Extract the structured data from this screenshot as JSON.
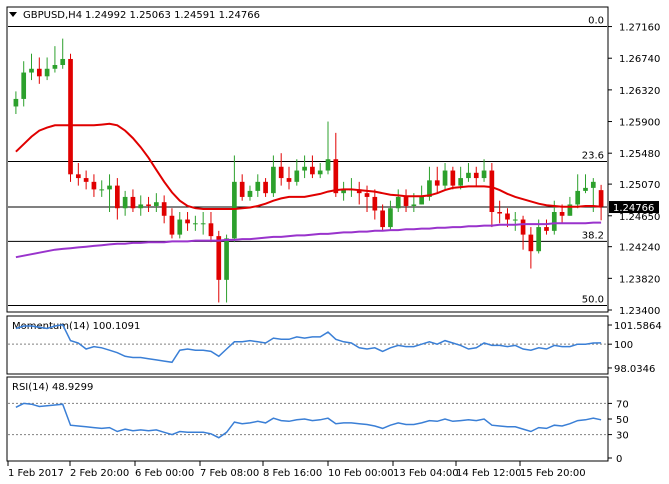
{
  "header": {
    "symbol": "GBPUSD,H4",
    "ohlc": "1.24992 1.25063 1.24591 1.24766"
  },
  "colors": {
    "bull": "#2ca02c",
    "bear": "#e00000",
    "ma_fast": "#e00000",
    "ma_slow": "#9933cc",
    "indicator": "#3a7fd6",
    "grid": "#000000",
    "dotted": "#808080",
    "price_tag_bg": "#000000",
    "price_tag_fg": "#ffffff"
  },
  "chart_data": [
    {
      "type": "candlestick",
      "name": "price",
      "ylim": [
        1.234,
        1.273
      ],
      "y_ticks": [
        "1.27160",
        "1.26740",
        "1.26320",
        "1.25900",
        "1.25480",
        "1.25070",
        "1.24650",
        "1.24240",
        "1.23820",
        "1.23400"
      ],
      "x_labels": [
        "1 Feb 2017",
        "2 Feb 20:00",
        "6 Feb 00:00",
        "7 Feb 08:00",
        "8 Feb 16:00",
        "10 Feb 00:00",
        "13 Feb 04:00",
        "14 Feb 12:00",
        "15 Feb 20:00"
      ],
      "last_price": "1.24766",
      "fib_levels": [
        {
          "label": "0.0",
          "value": 1.2716
        },
        {
          "label": "23.6",
          "value": 1.2537
        },
        {
          "label": "38.2",
          "value": 1.2431
        },
        {
          "label": "50.0",
          "value": 1.2346
        }
      ],
      "closes": [
        1.262,
        1.2655,
        1.266,
        1.265,
        1.266,
        1.2665,
        1.2673,
        1.252,
        1.2515,
        1.251,
        1.25,
        1.25,
        1.2505,
        1.2475,
        1.249,
        1.2475,
        1.248,
        1.2478,
        1.2483,
        1.2465,
        1.244,
        1.246,
        1.2455,
        1.2455,
        1.2455,
        1.2438,
        1.238,
        1.2435,
        1.251,
        1.249,
        1.2498,
        1.251,
        1.2495,
        1.253,
        1.2515,
        1.251,
        1.2525,
        1.253,
        1.252,
        1.2525,
        1.254,
        1.2495,
        1.25,
        1.25,
        1.2495,
        1.249,
        1.2472,
        1.245,
        1.2475,
        1.249,
        1.2478,
        1.248,
        1.249,
        1.2512,
        1.2505,
        1.2525,
        1.2505,
        1.2515,
        1.2522,
        1.2515,
        1.2525,
        1.247,
        1.2468,
        1.246,
        1.246,
        1.244,
        1.2418,
        1.245,
        1.2445,
        1.247,
        1.2465,
        1.248,
        1.2498,
        1.2502,
        1.251,
        1.2477
      ],
      "opens": [
        1.261,
        1.262,
        1.2655,
        1.266,
        1.265,
        1.266,
        1.2665,
        1.2673,
        1.252,
        1.2515,
        1.251,
        1.25,
        1.25,
        1.2505,
        1.2475,
        1.249,
        1.2475,
        1.248,
        1.2478,
        1.2483,
        1.2465,
        1.244,
        1.246,
        1.2455,
        1.2455,
        1.2455,
        1.2438,
        1.238,
        1.2435,
        1.251,
        1.249,
        1.2498,
        1.251,
        1.2495,
        1.253,
        1.2515,
        1.251,
        1.2525,
        1.253,
        1.252,
        1.2525,
        1.254,
        1.2495,
        1.25,
        1.25,
        1.2495,
        1.249,
        1.2472,
        1.245,
        1.2475,
        1.249,
        1.2478,
        1.248,
        1.249,
        1.2512,
        1.2505,
        1.2525,
        1.2505,
        1.2515,
        1.2522,
        1.2515,
        1.2525,
        1.247,
        1.2468,
        1.246,
        1.246,
        1.244,
        1.2418,
        1.245,
        1.2445,
        1.247,
        1.2465,
        1.248,
        1.2498,
        1.2502,
        1.2499
      ],
      "highs": [
        1.263,
        1.267,
        1.268,
        1.2675,
        1.2675,
        1.269,
        1.27,
        1.268,
        1.2535,
        1.2525,
        1.252,
        1.2512,
        1.252,
        1.2515,
        1.2498,
        1.25,
        1.2492,
        1.249,
        1.2495,
        1.2492,
        1.2475,
        1.247,
        1.247,
        1.2465,
        1.247,
        1.247,
        1.2445,
        1.244,
        1.2545,
        1.252,
        1.2505,
        1.252,
        1.2515,
        1.2545,
        1.2548,
        1.253,
        1.254,
        1.2545,
        1.2545,
        1.2535,
        1.259,
        1.2575,
        1.251,
        1.2515,
        1.251,
        1.2505,
        1.25,
        1.248,
        1.2485,
        1.25,
        1.25,
        1.2495,
        1.2505,
        1.253,
        1.253,
        1.2535,
        1.253,
        1.253,
        1.2535,
        1.253,
        1.254,
        1.2535,
        1.2485,
        1.2475,
        1.247,
        1.2465,
        1.245,
        1.246,
        1.246,
        1.2485,
        1.248,
        1.249,
        1.252,
        1.252,
        1.2515,
        1.2506
      ],
      "lows": [
        1.26,
        1.261,
        1.2645,
        1.264,
        1.2645,
        1.2655,
        1.266,
        1.251,
        1.2505,
        1.25,
        1.249,
        1.249,
        1.247,
        1.246,
        1.2465,
        1.247,
        1.2465,
        1.247,
        1.247,
        1.2455,
        1.2435,
        1.2435,
        1.2445,
        1.2445,
        1.244,
        1.243,
        1.235,
        1.235,
        1.243,
        1.2485,
        1.2485,
        1.249,
        1.249,
        1.249,
        1.2505,
        1.25,
        1.2505,
        1.2515,
        1.2515,
        1.2515,
        1.252,
        1.249,
        1.2485,
        1.249,
        1.248,
        1.247,
        1.246,
        1.2445,
        1.2445,
        1.247,
        1.247,
        1.247,
        1.248,
        1.2485,
        1.2495,
        1.25,
        1.25,
        1.25,
        1.251,
        1.2505,
        1.251,
        1.245,
        1.2455,
        1.245,
        1.2445,
        1.242,
        1.2395,
        1.2415,
        1.244,
        1.244,
        1.2455,
        1.2465,
        1.2475,
        1.2495,
        1.247,
        1.2459
      ],
      "ma_fast": [
        1.255,
        1.256,
        1.257,
        1.2578,
        1.2582,
        1.2585,
        1.2585,
        1.2585,
        1.2585,
        1.2585,
        1.2585,
        1.2586,
        1.2587,
        1.2585,
        1.2578,
        1.2568,
        1.2556,
        1.2542,
        1.2526,
        1.251,
        1.2496,
        1.2485,
        1.2478,
        1.2475,
        1.2474,
        1.2474,
        1.2474,
        1.2474,
        1.2474,
        1.2475,
        1.2476,
        1.2478,
        1.2481,
        1.2485,
        1.2488,
        1.249,
        1.249,
        1.249,
        1.2492,
        1.2494,
        1.2497,
        1.2499,
        1.25,
        1.25,
        1.2499,
        1.2498,
        1.2497,
        1.2495,
        1.2493,
        1.2492,
        1.2491,
        1.2491,
        1.2491,
        1.2492,
        1.2495,
        1.2499,
        1.2502,
        1.2503,
        1.2504,
        1.2504,
        1.2504,
        1.2503,
        1.2499,
        1.2494,
        1.249,
        1.2487,
        1.2484,
        1.2481,
        1.2479,
        1.2478,
        1.2477,
        1.2477,
        1.2477,
        1.2478,
        1.2478,
        1.2477
      ],
      "ma_slow": [
        1.241,
        1.2412,
        1.2414,
        1.2416,
        1.2418,
        1.242,
        1.2421,
        1.2422,
        1.2423,
        1.2424,
        1.2425,
        1.2426,
        1.2427,
        1.2428,
        1.2428,
        1.2429,
        1.2429,
        1.243,
        1.243,
        1.243,
        1.2431,
        1.2431,
        1.2431,
        1.2432,
        1.2432,
        1.2432,
        1.2432,
        1.2433,
        1.2433,
        1.2434,
        1.2434,
        1.2435,
        1.2436,
        1.2437,
        1.2437,
        1.2438,
        1.2439,
        1.2439,
        1.244,
        1.2441,
        1.2441,
        1.2442,
        1.2443,
        1.2443,
        1.2444,
        1.2444,
        1.2445,
        1.2445,
        1.2446,
        1.2446,
        1.2447,
        1.2447,
        1.2448,
        1.2448,
        1.2449,
        1.2449,
        1.245,
        1.245,
        1.2451,
        1.2451,
        1.2452,
        1.2452,
        1.2453,
        1.2453,
        1.2453,
        1.2454,
        1.2454,
        1.2454,
        1.2454,
        1.2455,
        1.2455,
        1.2455,
        1.2455,
        1.2455,
        1.2456,
        1.2456
      ]
    },
    {
      "type": "line",
      "name": "momentum",
      "label": "Momentum(14) 100.1091",
      "ylim": [
        97.7,
        102.0
      ],
      "y_ticks": [
        "101.5864",
        "100",
        "98.0346"
      ],
      "ref_level": 100,
      "values": [
        101.3,
        101.5,
        101.5,
        101.4,
        101.3,
        101.5,
        101.6,
        100.3,
        100.1,
        99.6,
        99.8,
        99.7,
        99.5,
        99.3,
        99.0,
        98.9,
        98.9,
        98.8,
        98.7,
        98.6,
        98.5,
        99.5,
        99.6,
        99.5,
        99.5,
        99.4,
        99.0,
        99.6,
        100.2,
        100.2,
        100.3,
        100.2,
        100.1,
        100.5,
        100.4,
        100.4,
        100.6,
        100.5,
        100.6,
        100.6,
        101.0,
        100.4,
        100.2,
        100.1,
        99.7,
        99.6,
        99.7,
        99.4,
        99.7,
        99.9,
        99.8,
        99.8,
        100.0,
        100.2,
        100.0,
        100.3,
        100.1,
        99.9,
        99.6,
        99.7,
        100.1,
        99.9,
        99.9,
        99.8,
        99.9,
        99.6,
        99.5,
        99.7,
        99.6,
        99.9,
        99.8,
        99.8,
        100.0,
        100.0,
        100.1,
        100.11
      ]
    },
    {
      "type": "line",
      "name": "rsi",
      "label": "RSI(14) 48.9299",
      "ylim": [
        0,
        100
      ],
      "y_ticks": [
        "70",
        "50",
        "30",
        "0"
      ],
      "ref_levels": [
        70,
        30
      ],
      "values": [
        65,
        70,
        69,
        66,
        67,
        68,
        69,
        42,
        41,
        40,
        39,
        38,
        39,
        34,
        37,
        35,
        36,
        35,
        36,
        33,
        30,
        34,
        33,
        33,
        33,
        31,
        26,
        33,
        46,
        44,
        45,
        47,
        45,
        51,
        48,
        47,
        49,
        50,
        48,
        49,
        51,
        44,
        45,
        45,
        44,
        43,
        41,
        38,
        42,
        45,
        43,
        43,
        45,
        48,
        47,
        50,
        47,
        48,
        49,
        48,
        50,
        42,
        41,
        40,
        40,
        37,
        34,
        39,
        38,
        42,
        41,
        44,
        48,
        49,
        51,
        48.93
      ]
    }
  ]
}
